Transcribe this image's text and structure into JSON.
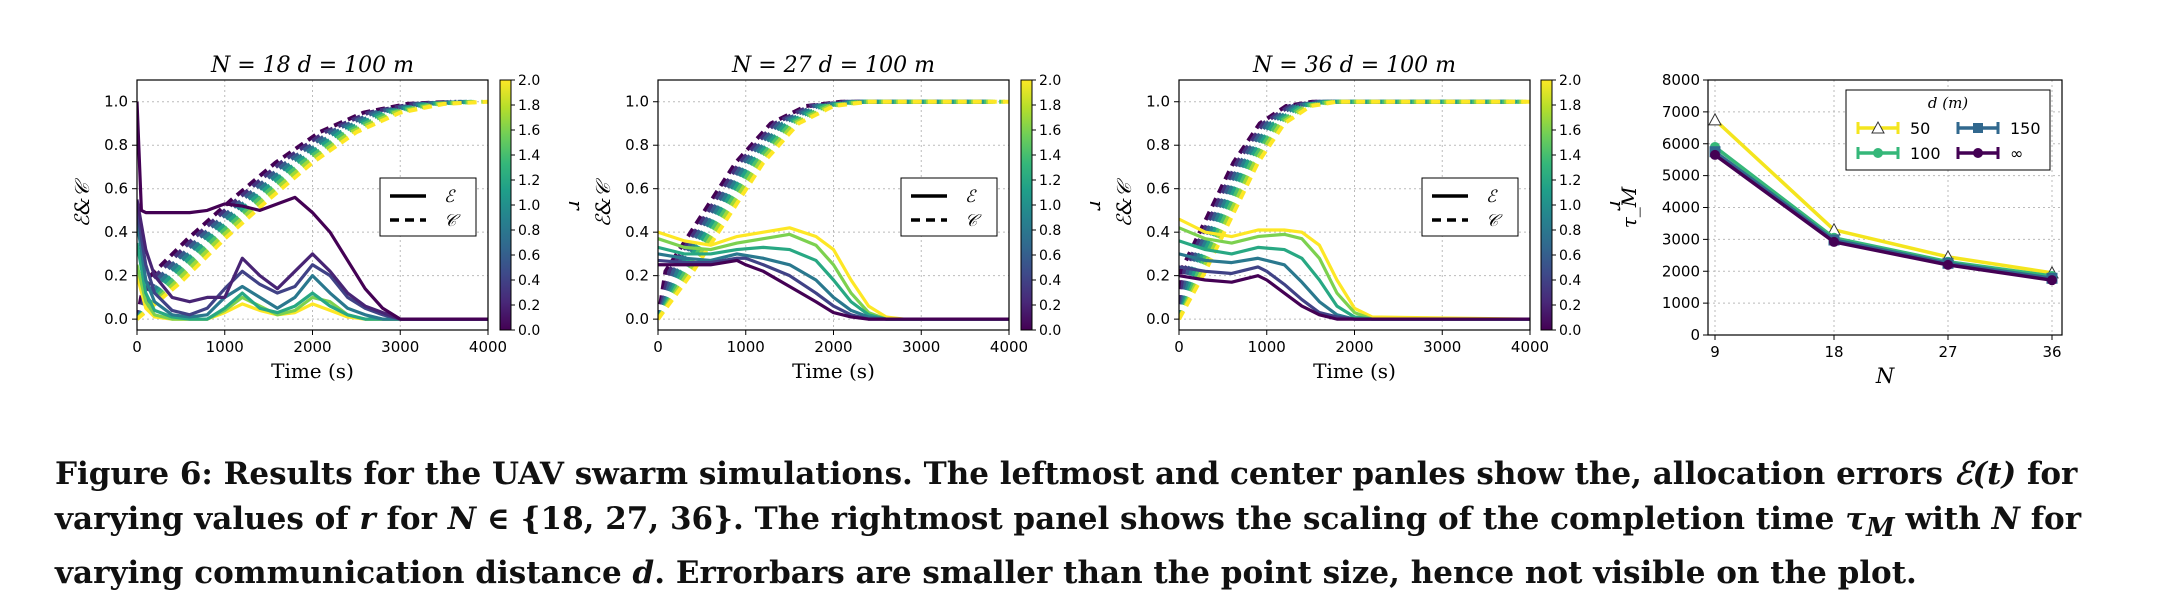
{
  "colors": {
    "viridis": [
      "#440154",
      "#482878",
      "#3e4989",
      "#31688e",
      "#26828e",
      "#1f9e89",
      "#35b779",
      "#6ece58",
      "#b5de2b",
      "#fde725"
    ]
  },
  "chart_data": [
    {
      "type": "line",
      "title": "N = 18   d = 100 m",
      "xlabel": "Time (s)",
      "ylabel": "ℰ&𝒞",
      "xlim": [
        0,
        4000
      ],
      "ylim": [
        -0.05,
        1.1
      ],
      "xticks": [
        "0",
        "1000",
        "2000",
        "3000",
        "4000"
      ],
      "yticks": [
        "0.0",
        "0.2",
        "0.4",
        "0.6",
        "0.8",
        "1.0"
      ],
      "grid": true,
      "legend": {
        "position": "center-right",
        "entries": [
          "ℰ",
          "𝒞"
        ],
        "styles": [
          "solid",
          "dashed"
        ]
      },
      "colorbar": {
        "label": "r",
        "range": [
          0.0,
          2.0
        ],
        "ticks": [
          "0.0",
          "0.2",
          "0.4",
          "0.6",
          "0.8",
          "1.0",
          "1.2",
          "1.4",
          "1.6",
          "1.8",
          "2.0"
        ]
      },
      "series_E": [
        {
          "r": 0.0,
          "x": [
            0,
            50,
            100,
            200,
            400,
            600,
            800,
            1000,
            1200,
            1400,
            1600,
            1800,
            2000,
            2200,
            2400,
            2600,
            2800,
            3000,
            4000
          ],
          "y": [
            1.0,
            0.5,
            0.49,
            0.49,
            0.49,
            0.49,
            0.5,
            0.53,
            0.52,
            0.5,
            0.53,
            0.56,
            0.49,
            0.4,
            0.27,
            0.14,
            0.05,
            0.0,
            0.0
          ]
        },
        {
          "r": 0.2,
          "x": [
            0,
            100,
            200,
            400,
            600,
            800,
            1000,
            1200,
            1400,
            1600,
            1800,
            2000,
            2200,
            2400,
            2600,
            2800,
            3000,
            4000
          ],
          "y": [
            0.55,
            0.32,
            0.2,
            0.1,
            0.08,
            0.1,
            0.1,
            0.28,
            0.2,
            0.14,
            0.22,
            0.3,
            0.22,
            0.12,
            0.06,
            0.03,
            0.0,
            0.0
          ]
        },
        {
          "r": 0.4,
          "x": [
            0,
            100,
            200,
            400,
            600,
            800,
            1000,
            1200,
            1400,
            1600,
            1800,
            2000,
            2200,
            2400,
            2600,
            2800,
            3000,
            4000
          ],
          "y": [
            0.5,
            0.25,
            0.12,
            0.04,
            0.02,
            0.05,
            0.14,
            0.22,
            0.16,
            0.12,
            0.15,
            0.25,
            0.2,
            0.1,
            0.05,
            0.02,
            0.0,
            0.0
          ]
        },
        {
          "r": 0.8,
          "x": [
            0,
            100,
            200,
            400,
            600,
            800,
            1000,
            1200,
            1400,
            1600,
            1800,
            2000,
            2200,
            2400,
            2600,
            2800,
            4000
          ],
          "y": [
            0.45,
            0.18,
            0.08,
            0.02,
            0.01,
            0.02,
            0.1,
            0.15,
            0.1,
            0.05,
            0.1,
            0.2,
            0.12,
            0.05,
            0.02,
            0.0,
            0.0
          ]
        },
        {
          "r": 1.2,
          "x": [
            0,
            100,
            200,
            400,
            600,
            800,
            1000,
            1200,
            1400,
            1600,
            1800,
            2000,
            2200,
            2400,
            2600,
            4000
          ],
          "y": [
            0.35,
            0.12,
            0.04,
            0.01,
            0.0,
            0.0,
            0.05,
            0.12,
            0.05,
            0.03,
            0.06,
            0.12,
            0.06,
            0.02,
            0.0,
            0.0
          ]
        },
        {
          "r": 1.6,
          "x": [
            0,
            100,
            200,
            400,
            600,
            800,
            1000,
            1200,
            1400,
            1600,
            1800,
            2000,
            2200,
            2400,
            2600,
            4000
          ],
          "y": [
            0.25,
            0.08,
            0.02,
            0.0,
            0.0,
            0.0,
            0.04,
            0.1,
            0.06,
            0.02,
            0.04,
            0.1,
            0.08,
            0.02,
            0.0,
            0.0
          ]
        },
        {
          "r": 2.0,
          "x": [
            0,
            100,
            200,
            400,
            600,
            800,
            1000,
            1200,
            1400,
            1600,
            1800,
            2000,
            2200,
            2400,
            2600,
            4000
          ],
          "y": [
            0.2,
            0.05,
            0.01,
            0.0,
            0.0,
            0.0,
            0.03,
            0.07,
            0.04,
            0.02,
            0.03,
            0.07,
            0.04,
            0.01,
            0.0,
            0.0
          ]
        }
      ],
      "series_C": {
        "x": [
          0,
          500,
          1000,
          1500,
          2000,
          2500,
          3000,
          3500,
          4000
        ],
        "y": [
          0.0,
          0.17,
          0.37,
          0.55,
          0.72,
          0.86,
          0.95,
          0.99,
          1.0
        ],
        "shift_per_r": 60
      }
    },
    {
      "type": "line",
      "title": "N = 27   d = 100 m",
      "xlabel": "Time (s)",
      "ylabel": "ℰ&𝒞",
      "xlim": [
        0,
        4000
      ],
      "ylim": [
        -0.05,
        1.1
      ],
      "xticks": [
        "0",
        "1000",
        "2000",
        "3000",
        "4000"
      ],
      "yticks": [
        "0.0",
        "0.2",
        "0.4",
        "0.6",
        "0.8",
        "1.0"
      ],
      "grid": true,
      "legend": {
        "position": "center-right",
        "entries": [
          "ℰ",
          "𝒞"
        ],
        "styles": [
          "solid",
          "dashed"
        ]
      },
      "colorbar": {
        "label": "r",
        "range": [
          0.0,
          2.0
        ],
        "ticks": [
          "0.0",
          "0.2",
          "0.4",
          "0.6",
          "0.8",
          "1.0",
          "1.2",
          "1.4",
          "1.6",
          "1.8",
          "2.0"
        ]
      },
      "series_E": [
        {
          "r": 0.0,
          "x": [
            0,
            300,
            600,
            900,
            1000,
            1200,
            1500,
            1800,
            2000,
            2200,
            2400,
            2600,
            4000
          ],
          "y": [
            0.25,
            0.25,
            0.25,
            0.27,
            0.25,
            0.22,
            0.15,
            0.08,
            0.03,
            0.01,
            0.0,
            0.0,
            0.0
          ]
        },
        {
          "r": 0.4,
          "x": [
            0,
            300,
            600,
            900,
            1000,
            1200,
            1500,
            1800,
            2000,
            2200,
            2400,
            2600,
            4000
          ],
          "y": [
            0.27,
            0.26,
            0.26,
            0.28,
            0.28,
            0.25,
            0.2,
            0.12,
            0.06,
            0.02,
            0.0,
            0.0,
            0.0
          ]
        },
        {
          "r": 0.8,
          "x": [
            0,
            300,
            600,
            900,
            1200,
            1500,
            1800,
            2000,
            2200,
            2400,
            2600,
            4000
          ],
          "y": [
            0.3,
            0.28,
            0.27,
            0.3,
            0.28,
            0.25,
            0.18,
            0.1,
            0.04,
            0.01,
            0.0,
            0.0
          ]
        },
        {
          "r": 1.2,
          "x": [
            0,
            300,
            600,
            900,
            1200,
            1500,
            1800,
            2000,
            2200,
            2400,
            2600,
            4000
          ],
          "y": [
            0.33,
            0.3,
            0.3,
            0.32,
            0.33,
            0.32,
            0.27,
            0.18,
            0.08,
            0.02,
            0.0,
            0.0
          ]
        },
        {
          "r": 1.6,
          "x": [
            0,
            300,
            600,
            900,
            1200,
            1500,
            1800,
            2000,
            2200,
            2400,
            2600,
            4000
          ],
          "y": [
            0.37,
            0.33,
            0.32,
            0.35,
            0.37,
            0.39,
            0.34,
            0.25,
            0.12,
            0.03,
            0.0,
            0.0
          ]
        },
        {
          "r": 2.0,
          "x": [
            0,
            300,
            600,
            900,
            1200,
            1500,
            1800,
            2000,
            2200,
            2400,
            2600,
            2800,
            4000
          ],
          "y": [
            0.4,
            0.36,
            0.34,
            0.38,
            0.4,
            0.42,
            0.38,
            0.32,
            0.18,
            0.06,
            0.01,
            0.0,
            0.0
          ]
        }
      ],
      "series_C": {
        "x": [
          0,
          400,
          800,
          1200,
          1600,
          2000,
          2400,
          2800,
          3200,
          4000
        ],
        "y": [
          0.0,
          0.22,
          0.47,
          0.72,
          0.9,
          0.98,
          1.0,
          1.0,
          1.0,
          1.0
        ],
        "shift_per_r": 45
      }
    },
    {
      "type": "line",
      "title": "N = 36   d = 100 m",
      "xlabel": "Time (s)",
      "ylabel": "ℰ&𝒞",
      "xlim": [
        0,
        4000
      ],
      "ylim": [
        -0.05,
        1.1
      ],
      "xticks": [
        "0",
        "1000",
        "2000",
        "3000",
        "4000"
      ],
      "yticks": [
        "0.0",
        "0.2",
        "0.4",
        "0.6",
        "0.8",
        "1.0"
      ],
      "grid": true,
      "legend": {
        "position": "center-right",
        "entries": [
          "ℰ",
          "𝒞"
        ],
        "styles": [
          "solid",
          "dashed"
        ]
      },
      "colorbar": {
        "label": "r",
        "range": [
          0.0,
          2.0
        ],
        "ticks": [
          "0.0",
          "0.2",
          "0.4",
          "0.6",
          "0.8",
          "1.0",
          "1.2",
          "1.4",
          "1.6",
          "1.8",
          "2.0"
        ]
      },
      "series_E": [
        {
          "r": 0.0,
          "x": [
            0,
            300,
            600,
            900,
            1000,
            1200,
            1400,
            1600,
            1800,
            2000,
            2200,
            4000
          ],
          "y": [
            0.2,
            0.18,
            0.17,
            0.2,
            0.18,
            0.12,
            0.06,
            0.02,
            0.0,
            0.0,
            0.0,
            0.0
          ]
        },
        {
          "r": 0.4,
          "x": [
            0,
            300,
            600,
            900,
            1000,
            1200,
            1400,
            1600,
            1800,
            2000,
            2200,
            4000
          ],
          "y": [
            0.24,
            0.22,
            0.21,
            0.24,
            0.22,
            0.16,
            0.09,
            0.03,
            0.01,
            0.0,
            0.0,
            0.0
          ]
        },
        {
          "r": 0.8,
          "x": [
            0,
            300,
            600,
            900,
            1200,
            1400,
            1600,
            1800,
            2000,
            2200,
            4000
          ],
          "y": [
            0.3,
            0.27,
            0.26,
            0.28,
            0.25,
            0.17,
            0.08,
            0.02,
            0.0,
            0.0,
            0.0
          ]
        },
        {
          "r": 1.2,
          "x": [
            0,
            300,
            600,
            900,
            1200,
            1400,
            1600,
            1800,
            2000,
            2200,
            4000
          ],
          "y": [
            0.36,
            0.32,
            0.3,
            0.33,
            0.32,
            0.28,
            0.18,
            0.06,
            0.01,
            0.0,
            0.0
          ]
        },
        {
          "r": 1.6,
          "x": [
            0,
            300,
            600,
            900,
            1200,
            1400,
            1600,
            1800,
            2000,
            2200,
            4000
          ],
          "y": [
            0.42,
            0.37,
            0.35,
            0.38,
            0.39,
            0.37,
            0.28,
            0.12,
            0.03,
            0.0,
            0.0
          ]
        },
        {
          "r": 2.0,
          "x": [
            0,
            300,
            600,
            900,
            1200,
            1400,
            1600,
            1800,
            2000,
            2200,
            4000
          ],
          "y": [
            0.46,
            0.4,
            0.38,
            0.41,
            0.41,
            0.4,
            0.34,
            0.18,
            0.05,
            0.01,
            0.0
          ]
        }
      ],
      "series_C": {
        "x": [
          0,
          300,
          600,
          900,
          1200,
          1500,
          1800,
          2100,
          2400,
          4000
        ],
        "y": [
          0.0,
          0.22,
          0.47,
          0.72,
          0.9,
          0.98,
          1.0,
          1.0,
          1.0,
          1.0
        ],
        "shift_per_r": 40
      }
    },
    {
      "type": "line",
      "title": "",
      "xlabel": "N",
      "ylabel": "τ_M",
      "categories": [
        9,
        18,
        27,
        36
      ],
      "xticks": [
        "9",
        "18",
        "27",
        "36"
      ],
      "ylim": [
        0,
        8000
      ],
      "yticks": [
        "0",
        "1000",
        "2000",
        "3000",
        "4000",
        "5000",
        "6000",
        "7000",
        "8000"
      ],
      "grid": true,
      "legend": {
        "position": "top-right",
        "title": "d (m)"
      },
      "series": [
        {
          "name": "50",
          "values": [
            6750,
            3300,
            2450,
            1950
          ],
          "color": "#f4e51e",
          "marker": "triangle"
        },
        {
          "name": "100",
          "values": [
            5900,
            3050,
            2300,
            1850
          ],
          "color": "#35b779",
          "marker": "cap"
        },
        {
          "name": "150",
          "values": [
            5750,
            2980,
            2250,
            1780
          ],
          "color": "#31688e",
          "marker": "square"
        },
        {
          "name": "∞",
          "values": [
            5650,
            2920,
            2200,
            1720
          ],
          "color": "#440154",
          "marker": "cap"
        }
      ]
    }
  ],
  "caption": {
    "p1": "Figure 6: Results for the UAV swarm simulations. The leftmost and center panles show the, allocation errors ",
    "sym1": "ℰ(t)",
    "p2": " for varying values of ",
    "sym2": "r",
    "p3": " for ",
    "sym3": "N",
    "p4": " ∈ {18, 27, 36}. The rightmost panel shows the scaling of the completion time ",
    "sym4": "τ",
    "sym4sub": "M",
    "p5": " with ",
    "sym5": "N",
    "p6": " for varying communication distance ",
    "sym6": "d",
    "p7": ". Errorbars are smaller than the point size, hence not visible on the plot."
  }
}
